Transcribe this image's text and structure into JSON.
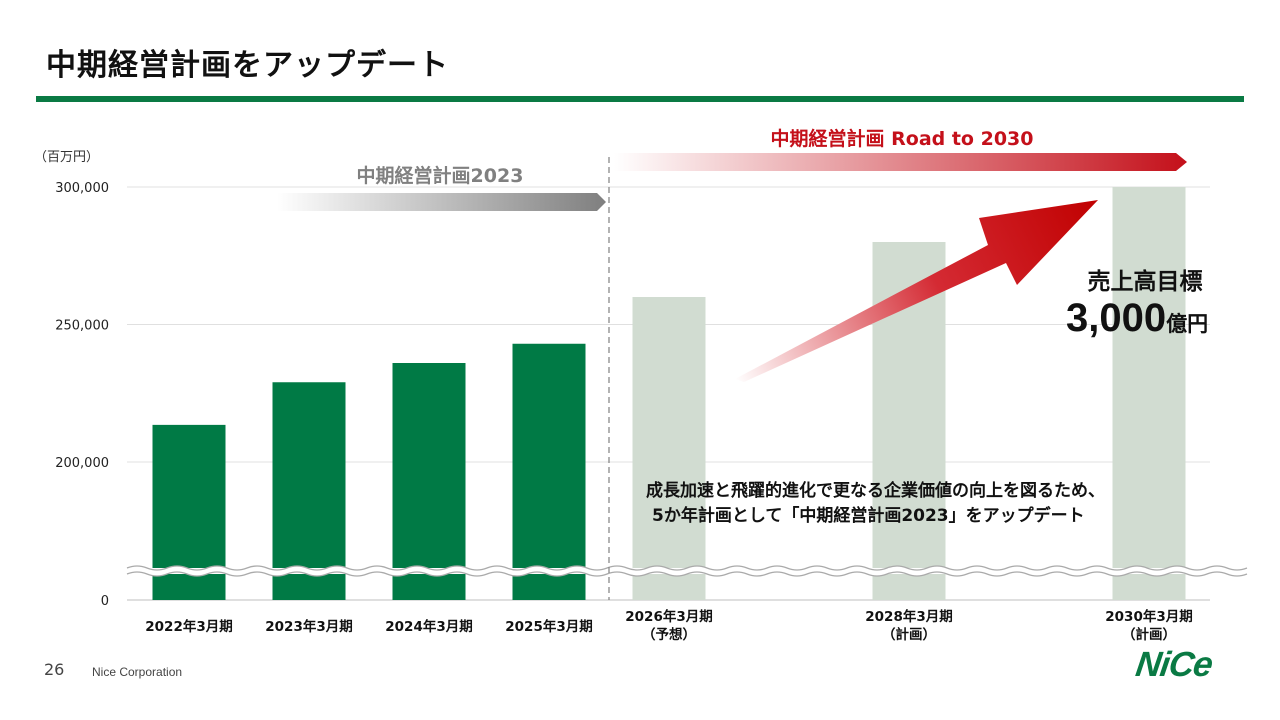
{
  "slide": {
    "title": "中期経営計画をアップデート",
    "page_number": "26",
    "corporation": "Nice Corporation",
    "logo_text": "NICE"
  },
  "colors": {
    "accent_green": "#0a7a44",
    "bar_actual": "#007a45",
    "bar_plan": "#d1dcd1",
    "arrow_red": "#c4101a",
    "arrow_gray": "#808080"
  },
  "chart_data": {
    "type": "bar",
    "unit_label": "（百万円）",
    "yticks": [
      {
        "value": 0,
        "label": "0"
      },
      {
        "value": 200000,
        "label": "200,000"
      },
      {
        "value": 250000,
        "label": "250,000"
      },
      {
        "value": 300000,
        "label": "300,000"
      }
    ],
    "axis_break": true,
    "grid": true,
    "categories": [
      [
        "2022年3月期"
      ],
      [
        "2023年3月期"
      ],
      [
        "2024年3月期"
      ],
      [
        "2025年3月期"
      ],
      [
        "2026年3月期",
        "（予想）"
      ],
      [
        "2028年3月期",
        "（計画）"
      ],
      [
        "2030年3月期",
        "（計画）"
      ]
    ],
    "values": [
      213500,
      229000,
      236000,
      243000,
      260000,
      280000,
      300000
    ],
    "bar_types": [
      "actual",
      "actual",
      "actual",
      "actual",
      "plan",
      "plan",
      "plan"
    ],
    "period_labels": [
      {
        "text": "中期経営計画2023",
        "style": "gray"
      },
      {
        "text": "中期経営計画 Road to 2030",
        "style": "red"
      }
    ],
    "annotation_target": {
      "label": "売上高目標",
      "value": "3,000",
      "unit": "億円"
    },
    "annotation_text": [
      "成長加速と飛躍的進化で更なる企業価値の向上を図るため、",
      "5か年計画として「中期経営計画2023」をアップデート"
    ]
  }
}
